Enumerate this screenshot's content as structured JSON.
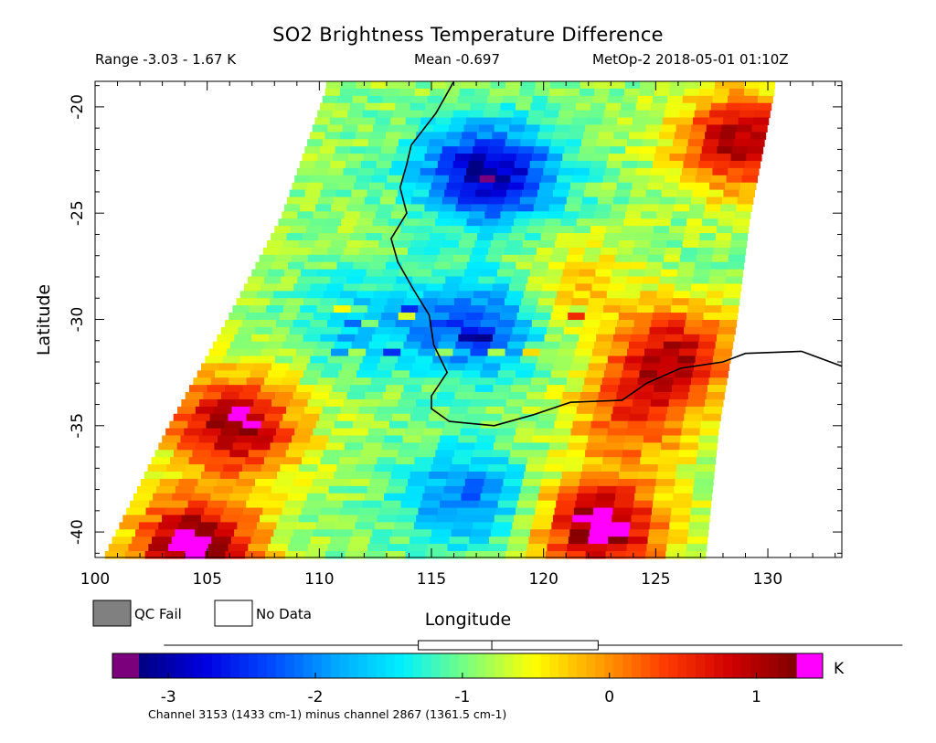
{
  "chart_data": {
    "type": "heatmap",
    "title": "SO2 Brightness Temperature Difference",
    "header": {
      "range": "Range -3.03 - 1.67 K",
      "mean": "Mean -0.697",
      "satellite_time": "MetOp-2 2018-05-01 01:10Z"
    },
    "xlabel": "Longitude",
    "ylabel": "Latitude",
    "xlim": [
      100,
      133.3
    ],
    "ylim": [
      -41.2,
      -18.8
    ],
    "x_ticks": [
      "100",
      "105",
      "110",
      "115",
      "120",
      "125",
      "130"
    ],
    "y_ticks": [
      "-20",
      "-25",
      "-30",
      "-35",
      "-40"
    ],
    "x_tick_values": [
      100,
      105,
      110,
      115,
      120,
      125,
      130
    ],
    "y_tick_values": [
      -20,
      -25,
      -30,
      -35,
      -40
    ],
    "value_range": [
      -3.03,
      1.67
    ],
    "mean": -0.697,
    "unit": "K",
    "swath_edges": {
      "west": [
        [
          -19,
          110.3
        ],
        [
          -25,
          108.3
        ],
        [
          -30,
          105.8
        ],
        [
          -35,
          103.2
        ],
        [
          -41.2,
          100.3
        ]
      ],
      "east": [
        [
          -19,
          130.3
        ],
        [
          -25,
          129.2
        ],
        [
          -30,
          128.6
        ],
        [
          -35,
          127.8
        ],
        [
          -41.2,
          127.2
        ]
      ]
    },
    "features": [
      {
        "lon": 116.8,
        "lat": -22.8,
        "value": -2.2
      },
      {
        "lon": 118.5,
        "lat": -23.2,
        "value": -2.0
      },
      {
        "lon": 117.0,
        "lat": -30.2,
        "value": -2.4
      },
      {
        "lon": 112.0,
        "lat": -30.0,
        "value": -1.6
      },
      {
        "lon": 116.5,
        "lat": -38.2,
        "value": -2.1
      },
      {
        "lon": 106.2,
        "lat": -34.8,
        "value": 1.3
      },
      {
        "lon": 104.5,
        "lat": -40.5,
        "value": 1.5
      },
      {
        "lon": 122.6,
        "lat": -39.6,
        "value": 1.4
      },
      {
        "lon": 125.8,
        "lat": -31.5,
        "value": 0.9
      },
      {
        "lon": 128.8,
        "lat": -21.5,
        "value": 1.1
      },
      {
        "lon": 121.5,
        "lat": -28.3,
        "value": -0.3
      },
      {
        "lon": 124.0,
        "lat": -34.5,
        "value": 0.3
      }
    ],
    "coastline": [
      [
        116.0,
        -18.8
      ],
      [
        115.2,
        -20.3
      ],
      [
        114.1,
        -21.8
      ],
      [
        113.9,
        -22.7
      ],
      [
        113.6,
        -23.8
      ],
      [
        113.9,
        -25.0
      ],
      [
        113.2,
        -26.2
      ],
      [
        113.5,
        -27.3
      ],
      [
        114.2,
        -28.6
      ],
      [
        114.9,
        -29.8
      ],
      [
        115.1,
        -31.2
      ],
      [
        115.7,
        -32.5
      ],
      [
        115.0,
        -33.6
      ],
      [
        115.0,
        -34.2
      ],
      [
        115.8,
        -34.8
      ],
      [
        117.8,
        -35.0
      ],
      [
        119.5,
        -34.5
      ],
      [
        121.2,
        -33.9
      ],
      [
        123.5,
        -33.8
      ],
      [
        124.6,
        -33.0
      ],
      [
        126.1,
        -32.3
      ],
      [
        128.0,
        -32.0
      ],
      [
        129.0,
        -31.6
      ],
      [
        131.5,
        -31.5
      ],
      [
        133.3,
        -32.2
      ]
    ],
    "legend": [
      "QC Fail",
      "No Data"
    ],
    "colorbar": {
      "ticks": [
        "-3",
        "-2",
        "-1",
        "0",
        "1"
      ],
      "tick_values": [
        -3,
        -2,
        -1,
        0,
        1
      ],
      "unit_label": "K",
      "range": [
        -3.2,
        1.27
      ],
      "under_color": "#7b007b",
      "over_color": "#ff00ff",
      "colors": [
        "#000080",
        "#0000e0",
        "#0048ff",
        "#00a8ff",
        "#00f0ff",
        "#7cff7c",
        "#ffff00",
        "#ffa000",
        "#ff3c00",
        "#d00000",
        "#800000"
      ]
    },
    "boxplot": {
      "whisker_low": -3.03,
      "q1": -1.3,
      "median": -0.8,
      "q3": -0.45,
      "whisker_high": 1.67
    },
    "footer": "Channel 3153 (1433 cm-1) minus channel 2867 (1361.5 cm-1)"
  }
}
